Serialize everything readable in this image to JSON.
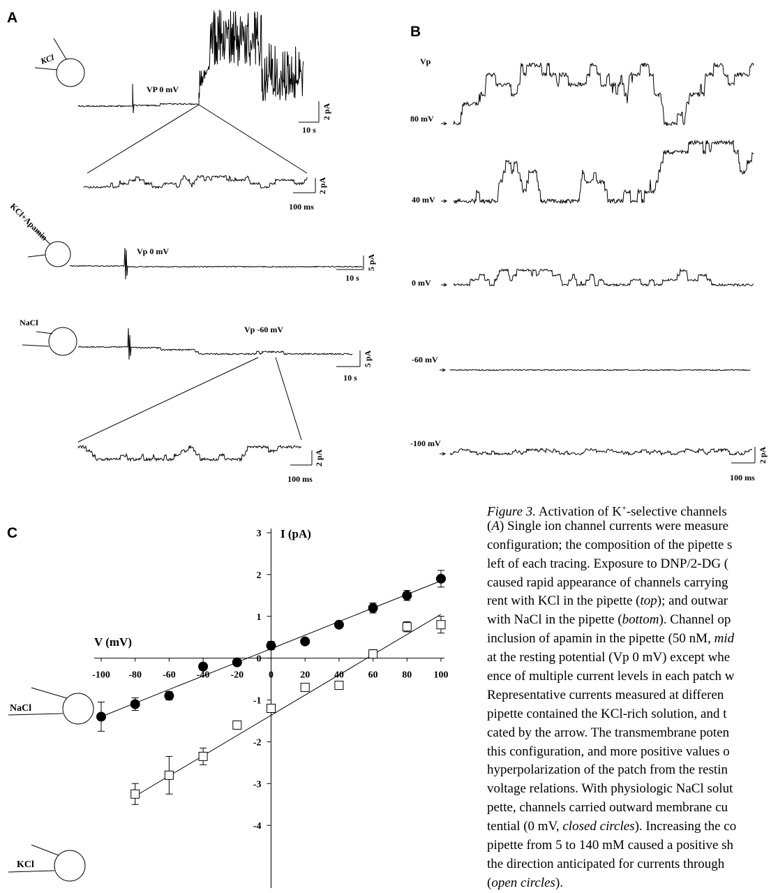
{
  "panel_labels": [
    "A",
    "B",
    "C"
  ],
  "panel_a": {
    "rows": [
      {
        "pipette": "KCl",
        "voltage": "VP 0 mV",
        "scale_y": "2 pA",
        "scale_x": "10 s",
        "zoom_scale_y": "2 pA",
        "zoom_scale_x": "100 ms"
      },
      {
        "pipette": "KCl+Apamin",
        "voltage": "Vp 0 mV",
        "scale_y": "5 pA",
        "scale_x": "10 s"
      },
      {
        "pipette": "NaCl",
        "voltage": "Vp -60 mV",
        "scale_y": "5 pA",
        "scale_x": "10 s",
        "zoom_scale_y": "2 pA",
        "zoom_scale_x": "100 ms"
      }
    ]
  },
  "panel_b": {
    "title": "Vp",
    "voltages": [
      "80 mV",
      "40 mV",
      "0 mV",
      "-60 mV",
      "-100 mV"
    ],
    "scale_y": "2 pA",
    "scale_x": "100 ms"
  },
  "chart_data": {
    "type": "scatter",
    "x_label": "V (mV)",
    "y_label": "I (pA)",
    "x": [
      -100,
      -80,
      -60,
      -40,
      -20,
      0,
      20,
      40,
      60,
      80,
      100
    ],
    "xlim": [
      -100,
      100
    ],
    "ylim": [
      -5.5,
      3.1
    ],
    "xticks": [
      -100,
      -80,
      -60,
      -40,
      -20,
      0,
      20,
      40,
      60,
      80,
      100
    ],
    "yticks": [
      3,
      2,
      1,
      0,
      -1,
      -2,
      -3,
      -4
    ],
    "series": [
      {
        "name": "NaCl",
        "marker": "circle",
        "color": "#000000",
        "values": [
          -1.4,
          -1.1,
          -0.9,
          -0.2,
          -0.1,
          0.3,
          0.4,
          0.8,
          1.2,
          1.5,
          1.9
        ],
        "errors": [
          0.35,
          0.15,
          0.1,
          0.08,
          0.05,
          0.1,
          0.05,
          0.05,
          0.12,
          0.12,
          0.2
        ],
        "fit_x": [
          -100,
          100
        ],
        "fit_y": [
          -1.4,
          1.85
        ]
      },
      {
        "name": "KCl",
        "marker": "square",
        "color": "#000000",
        "values": [
          null,
          -3.25,
          -2.8,
          -2.35,
          -1.6,
          -1.2,
          -0.7,
          -0.65,
          0.1,
          0.75,
          0.8
        ],
        "errors": [
          null,
          0.25,
          0.45,
          0.2,
          0.05,
          0.05,
          0.08,
          0.05,
          0.1,
          0.12,
          0.2
        ],
        "fit_x": [
          -80,
          100
        ],
        "fit_y": [
          -3.3,
          1.05
        ]
      }
    ]
  },
  "caption": [
    [
      {
        "text": "Figure 3.",
        "style": "italic"
      },
      {
        "text": "  Activation of K"
      },
      {
        "text": "+",
        "style": "sup"
      },
      {
        "text": "-selective channels"
      }
    ],
    [
      {
        "text": "("
      },
      {
        "text": "A",
        "style": "italic"
      },
      {
        "text": ") Single ion channel currents were measure"
      }
    ],
    [
      {
        "text": "configuration; the composition of the pipette s"
      }
    ],
    [
      {
        "text": "left of each tracing. Exposure to DNP/2-DG ("
      }
    ],
    [
      {
        "text": "caused rapid appearance of channels carrying"
      }
    ],
    [
      {
        "text": "rent with KCl in the pipette ("
      },
      {
        "text": "top",
        "style": "italic"
      },
      {
        "text": "); and outwar"
      }
    ],
    [
      {
        "text": "with NaCl in the pipette ("
      },
      {
        "text": "bottom",
        "style": "italic"
      },
      {
        "text": "). Channel op"
      }
    ],
    [
      {
        "text": "inclusion of apamin in the pipette (50 nM, "
      },
      {
        "text": "mid",
        "style": "italic"
      }
    ],
    [
      {
        "text": "at the resting potential (Vp 0 mV) except whe"
      }
    ],
    [
      {
        "text": "ence of multiple current levels in each patch w"
      }
    ],
    [
      {
        "text": "Representative currents measured at differen"
      }
    ],
    [
      {
        "text": "pipette contained the KCl-rich solution, and t"
      }
    ],
    [
      {
        "text": "cated by the arrow. The transmembrane poten"
      }
    ],
    [
      {
        "text": "this configuration, and more positive values o"
      }
    ],
    [
      {
        "text": "hyperpolarization of the patch from the restin"
      }
    ],
    [
      {
        "text": "voltage relations. With physiologic NaCl solut"
      }
    ],
    [
      {
        "text": "pette, channels carried outward membrane cu"
      }
    ],
    [
      {
        "text": "tential (0 mV, "
      },
      {
        "text": "closed circles",
        "style": "italic"
      },
      {
        "text": "). Increasing the co"
      }
    ],
    [
      {
        "text": "pipette from 5 to 140 mM caused a positive sh"
      }
    ],
    [
      {
        "text": "the direction anticipated for currents through"
      }
    ],
    [
      {
        "text": "("
      },
      {
        "text": "open circles",
        "style": "italic"
      },
      {
        "text": ")."
      }
    ]
  ]
}
